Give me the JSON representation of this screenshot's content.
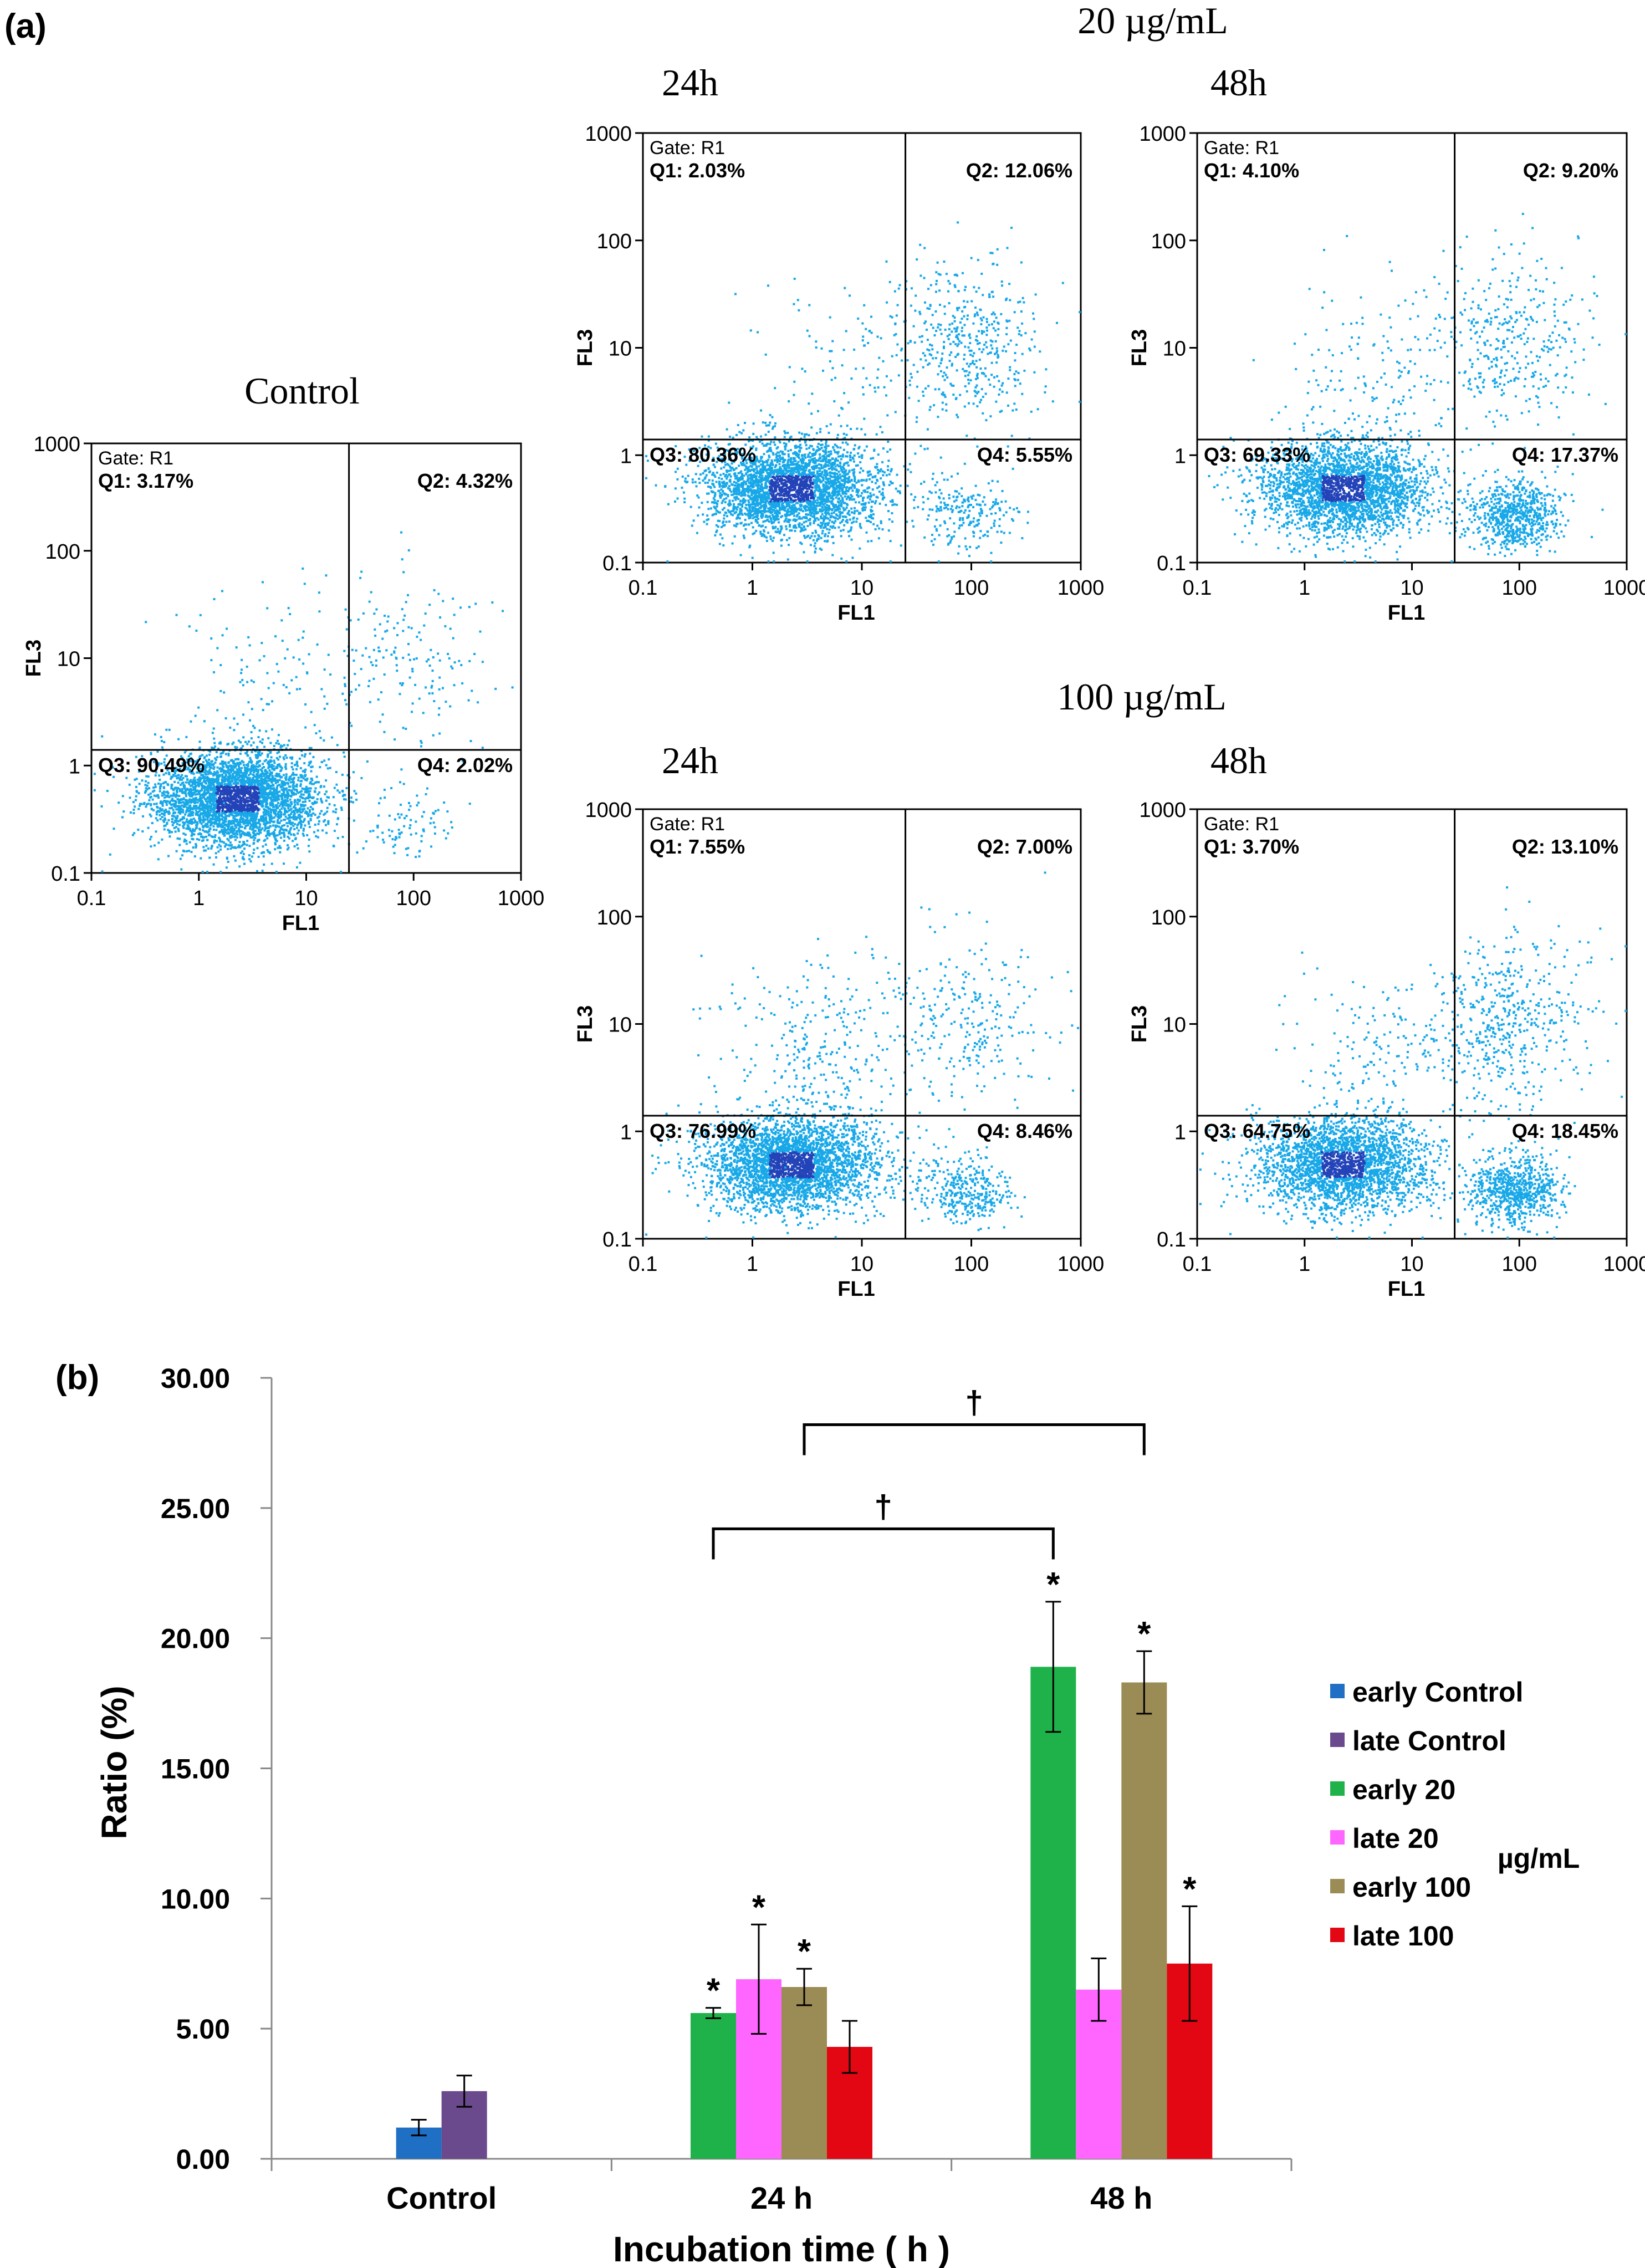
{
  "panel_a": {
    "label": "(a)",
    "group_20_title": "20 µg/mL",
    "group_100_title": "100 µg/mL",
    "axis": {
      "xlabel": "FL1",
      "ylabel": "FL3",
      "ticks": [
        "0.1",
        "1",
        "10",
        "100",
        "1000"
      ],
      "range": [
        0.1,
        1000
      ],
      "gate_threshold_x": 25,
      "gate_threshold_y": 1.4
    },
    "plots": [
      {
        "id": "control",
        "title": "Control",
        "gate": "Gate: R1",
        "q1": "Q1: 3.17%",
        "q2": "Q2: 4.32%",
        "q3": "Q3: 90.49%",
        "q4": "Q4: 2.02%"
      },
      {
        "id": "20-24h",
        "title": "24h",
        "gate": "Gate: R1",
        "q1": "Q1: 2.03%",
        "q2": "Q2: 12.06%",
        "q3": "Q3: 80.36%",
        "q4": "Q4: 5.55%"
      },
      {
        "id": "20-48h",
        "title": "48h",
        "gate": "Gate: R1",
        "q1": "Q1: 4.10%",
        "q2": "Q2: 9.20%",
        "q3": "Q3: 69.33%",
        "q4": "Q4: 17.37%"
      },
      {
        "id": "100-24h",
        "title": "24h",
        "gate": "Gate: R1",
        "q1": "Q1: 7.55%",
        "q2": "Q2: 7.00%",
        "q3": "Q3: 76.99%",
        "q4": "Q4: 8.46%"
      },
      {
        "id": "100-48h",
        "title": "48h",
        "gate": "Gate: R1",
        "q1": "Q1: 3.70%",
        "q2": "Q2: 13.10%",
        "q3": "Q3: 64.75%",
        "q4": "Q4: 18.45%"
      }
    ]
  },
  "chart_data": {
    "type": "bar",
    "label": "(b)",
    "title": "",
    "xlabel": "Incubation time ( h )",
    "ylabel": "Ratio (%)",
    "ylim": [
      0,
      30
    ],
    "yticks": [
      "0.00",
      "5.00",
      "10.00",
      "15.00",
      "20.00",
      "25.00",
      "30.00"
    ],
    "categories": [
      "Control",
      "24 h",
      "48 h"
    ],
    "legend_unit": "µg/mL",
    "series": [
      {
        "name": "early Control",
        "color": "#1f6fc4",
        "values": [
          1.2,
          null,
          null
        ],
        "errors": [
          0.3,
          null,
          null
        ],
        "sig": [
          "",
          "",
          ""
        ]
      },
      {
        "name": "late Control",
        "color": "#6a4a8c",
        "values": [
          2.6,
          null,
          null
        ],
        "errors": [
          0.6,
          null,
          null
        ],
        "sig": [
          "",
          "",
          ""
        ]
      },
      {
        "name": "early 20",
        "color": "#1fb24a",
        "values": [
          null,
          5.6,
          18.9
        ],
        "errors": [
          null,
          0.2,
          2.5
        ],
        "sig": [
          "",
          "*",
          "*"
        ]
      },
      {
        "name": "late 20",
        "color": "#ff66ff",
        "values": [
          null,
          6.9,
          6.5
        ],
        "errors": [
          null,
          2.1,
          1.2
        ],
        "sig": [
          "",
          "*",
          ""
        ]
      },
      {
        "name": "early 100",
        "color": "#9b8b55",
        "values": [
          null,
          6.6,
          18.3
        ],
        "errors": [
          null,
          0.7,
          1.2
        ],
        "sig": [
          "",
          "*",
          "*"
        ]
      },
      {
        "name": "late 100",
        "color": "#e30613",
        "values": [
          null,
          4.3,
          7.5
        ],
        "errors": [
          null,
          1.0,
          2.2
        ],
        "sig": [
          "",
          "",
          "*"
        ]
      }
    ],
    "brackets": [
      {
        "symbol": "†",
        "from": {
          "category": "24 h",
          "series": "early 20"
        },
        "to": {
          "category": "48 h",
          "series": "early 20"
        },
        "level": 24.2
      },
      {
        "symbol": "†",
        "from": {
          "category": "24 h",
          "series": "early 100"
        },
        "to": {
          "category": "48 h",
          "series": "early 100"
        },
        "level": 28.2
      }
    ]
  }
}
